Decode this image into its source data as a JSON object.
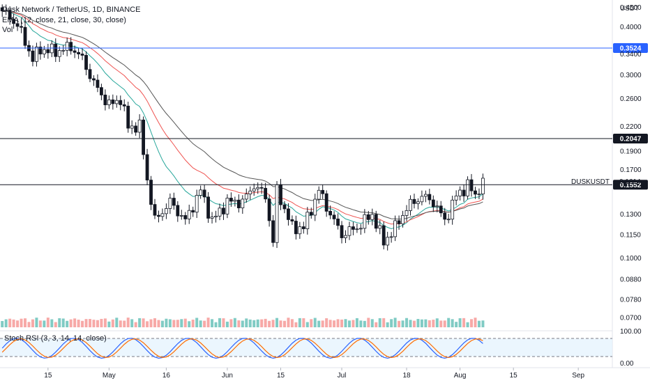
{
  "chart_data": {
    "type": "candlestick",
    "title": "Dusk Network / TetherUS, 1D, BINANCE",
    "indicator_ema": "EMA (12, close, 21, close, 30, close)",
    "indicator_vol": "Vol",
    "indicator_rsi": "Stoch RSI (3, 3, 14, 14, close)",
    "currency": "USDT",
    "symbol_label": "DUSKUSDT",
    "symbol_value": "0.1614",
    "yscale": "log",
    "ylim": [
      0.066,
      0.47
    ],
    "price_ticks": [
      "0.4500",
      "0.4000",
      "0.3400",
      "0.3000",
      "0.2600",
      "0.2200",
      "0.1900",
      "0.1700",
      "0.1300",
      "0.1150",
      "0.1000",
      "0.0880",
      "0.0780",
      "0.0700"
    ],
    "rsi_ticks": [
      "100.00",
      "0.00"
    ],
    "x_ticks": [
      {
        "label": "15",
        "day": 12
      },
      {
        "label": "May",
        "day": 28
      },
      {
        "label": "16",
        "day": 43
      },
      {
        "label": "Jun",
        "day": 59
      },
      {
        "label": "15",
        "day": 73
      },
      {
        "label": "Jul",
        "day": 89
      },
      {
        "label": "18",
        "day": 106
      },
      {
        "label": "Aug",
        "day": 120
      },
      {
        "label": "15",
        "day": 134
      },
      {
        "label": "Sep",
        "day": 151
      }
    ],
    "horizontal_lines": [
      {
        "price": 0.3524,
        "label": "0.3524",
        "color": "#2962ff"
      },
      {
        "price": 0.2047,
        "label": "0.2047",
        "color": "#131722"
      },
      {
        "price": 0.1552,
        "label": "0.1552",
        "color": "#131722"
      }
    ],
    "key_closes": [
      {
        "day": 0,
        "close": 0.44
      },
      {
        "day": 4,
        "close": 0.405
      },
      {
        "day": 8,
        "close": 0.33
      },
      {
        "day": 10,
        "close": 0.35
      },
      {
        "day": 14,
        "close": 0.345
      },
      {
        "day": 18,
        "close": 0.355
      },
      {
        "day": 21,
        "close": 0.33
      },
      {
        "day": 24,
        "close": 0.285
      },
      {
        "day": 28,
        "close": 0.25
      },
      {
        "day": 31,
        "close": 0.26
      },
      {
        "day": 33,
        "close": 0.22
      },
      {
        "day": 36,
        "close": 0.22
      },
      {
        "day": 38,
        "close": 0.16
      },
      {
        "day": 40,
        "close": 0.125
      },
      {
        "day": 44,
        "close": 0.14
      },
      {
        "day": 48,
        "close": 0.125
      },
      {
        "day": 52,
        "close": 0.15
      },
      {
        "day": 55,
        "close": 0.125
      },
      {
        "day": 59,
        "close": 0.14
      },
      {
        "day": 63,
        "close": 0.14
      },
      {
        "day": 66,
        "close": 0.155
      },
      {
        "day": 69,
        "close": 0.145
      },
      {
        "day": 71,
        "close": 0.11
      },
      {
        "day": 72,
        "close": 0.15
      },
      {
        "day": 76,
        "close": 0.12
      },
      {
        "day": 79,
        "close": 0.12
      },
      {
        "day": 83,
        "close": 0.15
      },
      {
        "day": 86,
        "close": 0.13
      },
      {
        "day": 89,
        "close": 0.115
      },
      {
        "day": 93,
        "close": 0.12
      },
      {
        "day": 97,
        "close": 0.13
      },
      {
        "day": 100,
        "close": 0.11
      },
      {
        "day": 103,
        "close": 0.12
      },
      {
        "day": 106,
        "close": 0.135
      },
      {
        "day": 110,
        "close": 0.145
      },
      {
        "day": 113,
        "close": 0.14
      },
      {
        "day": 116,
        "close": 0.125
      },
      {
        "day": 119,
        "close": 0.145
      },
      {
        "day": 122,
        "close": 0.155
      },
      {
        "day": 124,
        "close": 0.145
      },
      {
        "day": 126,
        "close": 0.1614
      }
    ]
  }
}
